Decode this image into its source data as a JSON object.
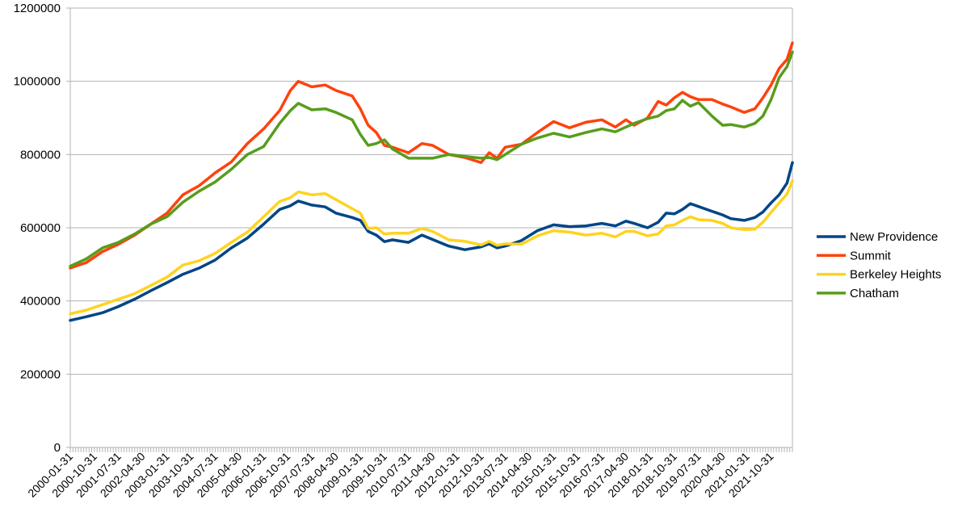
{
  "chart_data": {
    "type": "line",
    "title": "",
    "xlabel": "",
    "ylabel": "",
    "ylim": [
      0,
      1200000
    ],
    "yticks": [
      0,
      200000,
      400000,
      600000,
      800000,
      1000000,
      1200000
    ],
    "ytick_labels": [
      "0",
      "200000",
      "400000",
      "600000",
      "800000",
      "1000000",
      "1200000"
    ],
    "grid": "horizontal",
    "legend_position": "right",
    "x_start": "2000-01-31",
    "x_end": "2022-06-30",
    "xtick_labels": [
      "2000-01-31",
      "2000-10-31",
      "2001-07-31",
      "2002-04-30",
      "2003-01-31",
      "2003-10-31",
      "2004-07-31",
      "2005-04-30",
      "2006-01-31",
      "2006-10-31",
      "2007-07-31",
      "2008-04-30",
      "2009-01-31",
      "2009-10-31",
      "2010-07-31",
      "2011-04-30",
      "2012-01-31",
      "2012-10-31",
      "2013-07-31",
      "2014-04-30",
      "2015-01-31",
      "2015-10-31",
      "2016-07-31",
      "2017-04-30",
      "2018-01-31",
      "2018-10-31",
      "2019-07-31",
      "2020-04-30",
      "2021-01-31",
      "2021-10-31"
    ],
    "series": [
      {
        "name": "New Providence",
        "color": "#004586",
        "points": [
          [
            "2000-01-31",
            347000
          ],
          [
            "2000-07-31",
            357000
          ],
          [
            "2001-01-31",
            368000
          ],
          [
            "2001-07-31",
            385000
          ],
          [
            "2002-01-31",
            405000
          ],
          [
            "2002-07-31",
            428000
          ],
          [
            "2003-01-31",
            450000
          ],
          [
            "2003-07-31",
            473000
          ],
          [
            "2004-01-31",
            490000
          ],
          [
            "2004-07-31",
            512000
          ],
          [
            "2005-01-31",
            545000
          ],
          [
            "2005-07-31",
            572000
          ],
          [
            "2006-01-31",
            610000
          ],
          [
            "2006-07-31",
            650000
          ],
          [
            "2006-11-30",
            660000
          ],
          [
            "2007-02-28",
            673000
          ],
          [
            "2007-07-31",
            662000
          ],
          [
            "2007-12-31",
            657000
          ],
          [
            "2008-04-30",
            640000
          ],
          [
            "2008-10-31",
            628000
          ],
          [
            "2009-01-31",
            620000
          ],
          [
            "2009-04-30",
            590000
          ],
          [
            "2009-07-31",
            580000
          ],
          [
            "2009-10-31",
            562000
          ],
          [
            "2010-01-31",
            567000
          ],
          [
            "2010-07-31",
            560000
          ],
          [
            "2010-12-31",
            580000
          ],
          [
            "2011-04-30",
            568000
          ],
          [
            "2011-10-31",
            550000
          ],
          [
            "2012-04-30",
            540000
          ],
          [
            "2012-10-31",
            548000
          ],
          [
            "2013-01-31",
            556000
          ],
          [
            "2013-04-30",
            545000
          ],
          [
            "2013-07-31",
            550000
          ],
          [
            "2014-01-31",
            565000
          ],
          [
            "2014-07-31",
            592000
          ],
          [
            "2015-01-31",
            608000
          ],
          [
            "2015-07-31",
            603000
          ],
          [
            "2016-01-31",
            605000
          ],
          [
            "2016-07-31",
            612000
          ],
          [
            "2016-12-31",
            605000
          ],
          [
            "2017-04-30",
            618000
          ],
          [
            "2017-07-31",
            612000
          ],
          [
            "2017-12-31",
            600000
          ],
          [
            "2018-04-30",
            615000
          ],
          [
            "2018-07-31",
            640000
          ],
          [
            "2018-10-31",
            638000
          ],
          [
            "2019-01-31",
            650000
          ],
          [
            "2019-04-30",
            666000
          ],
          [
            "2019-07-31",
            658000
          ],
          [
            "2019-12-31",
            645000
          ],
          [
            "2020-04-30",
            635000
          ],
          [
            "2020-07-31",
            625000
          ],
          [
            "2020-12-31",
            620000
          ],
          [
            "2021-04-30",
            628000
          ],
          [
            "2021-07-31",
            643000
          ],
          [
            "2021-10-31",
            668000
          ],
          [
            "2022-01-31",
            690000
          ],
          [
            "2022-04-30",
            722000
          ],
          [
            "2022-06-30",
            778000
          ]
        ]
      },
      {
        "name": "Summit",
        "color": "#ff420e",
        "points": [
          [
            "2000-01-31",
            490000
          ],
          [
            "2000-07-31",
            505000
          ],
          [
            "2001-01-31",
            535000
          ],
          [
            "2001-07-31",
            555000
          ],
          [
            "2002-01-31",
            580000
          ],
          [
            "2002-07-31",
            610000
          ],
          [
            "2003-01-31",
            640000
          ],
          [
            "2003-07-31",
            690000
          ],
          [
            "2004-01-31",
            715000
          ],
          [
            "2004-07-31",
            750000
          ],
          [
            "2005-01-31",
            780000
          ],
          [
            "2005-07-31",
            830000
          ],
          [
            "2006-01-31",
            870000
          ],
          [
            "2006-07-31",
            920000
          ],
          [
            "2006-11-30",
            975000
          ],
          [
            "2007-02-28",
            1000000
          ],
          [
            "2007-07-31",
            985000
          ],
          [
            "2007-12-31",
            990000
          ],
          [
            "2008-04-30",
            975000
          ],
          [
            "2008-10-31",
            960000
          ],
          [
            "2009-01-31",
            925000
          ],
          [
            "2009-04-30",
            880000
          ],
          [
            "2009-07-31",
            860000
          ],
          [
            "2009-10-31",
            825000
          ],
          [
            "2010-01-31",
            820000
          ],
          [
            "2010-07-31",
            805000
          ],
          [
            "2010-12-31",
            830000
          ],
          [
            "2011-04-30",
            825000
          ],
          [
            "2011-10-31",
            800000
          ],
          [
            "2012-04-30",
            792000
          ],
          [
            "2012-10-31",
            778000
          ],
          [
            "2013-01-31",
            805000
          ],
          [
            "2013-04-30",
            790000
          ],
          [
            "2013-07-31",
            820000
          ],
          [
            "2014-01-31",
            828000
          ],
          [
            "2014-07-31",
            860000
          ],
          [
            "2015-01-31",
            890000
          ],
          [
            "2015-07-31",
            873000
          ],
          [
            "2016-01-31",
            888000
          ],
          [
            "2016-07-31",
            895000
          ],
          [
            "2016-12-31",
            875000
          ],
          [
            "2017-04-30",
            895000
          ],
          [
            "2017-07-31",
            880000
          ],
          [
            "2017-12-31",
            900000
          ],
          [
            "2018-04-30",
            945000
          ],
          [
            "2018-07-31",
            935000
          ],
          [
            "2018-10-31",
            955000
          ],
          [
            "2019-01-31",
            970000
          ],
          [
            "2019-04-30",
            958000
          ],
          [
            "2019-07-31",
            950000
          ],
          [
            "2019-12-31",
            950000
          ],
          [
            "2020-04-30",
            938000
          ],
          [
            "2020-07-31",
            930000
          ],
          [
            "2020-12-31",
            915000
          ],
          [
            "2021-04-30",
            925000
          ],
          [
            "2021-07-31",
            955000
          ],
          [
            "2021-10-31",
            990000
          ],
          [
            "2022-01-31",
            1035000
          ],
          [
            "2022-04-30",
            1060000
          ],
          [
            "2022-06-30",
            1105000
          ]
        ]
      },
      {
        "name": "Berkeley Heights",
        "color": "#ffd320",
        "points": [
          [
            "2000-01-31",
            365000
          ],
          [
            "2000-07-31",
            375000
          ],
          [
            "2001-01-31",
            390000
          ],
          [
            "2001-07-31",
            405000
          ],
          [
            "2002-01-31",
            420000
          ],
          [
            "2002-07-31",
            442000
          ],
          [
            "2003-01-31",
            465000
          ],
          [
            "2003-07-31",
            498000
          ],
          [
            "2004-01-31",
            510000
          ],
          [
            "2004-07-31",
            530000
          ],
          [
            "2005-01-31",
            560000
          ],
          [
            "2005-07-31",
            588000
          ],
          [
            "2006-01-31",
            630000
          ],
          [
            "2006-07-31",
            672000
          ],
          [
            "2006-11-30",
            682000
          ],
          [
            "2007-02-28",
            698000
          ],
          [
            "2007-07-31",
            690000
          ],
          [
            "2007-12-31",
            693000
          ],
          [
            "2008-04-30",
            677000
          ],
          [
            "2008-10-31",
            652000
          ],
          [
            "2009-01-31",
            640000
          ],
          [
            "2009-04-30",
            598000
          ],
          [
            "2009-07-31",
            600000
          ],
          [
            "2009-10-31",
            583000
          ],
          [
            "2010-01-31",
            585000
          ],
          [
            "2010-07-31",
            585000
          ],
          [
            "2010-12-31",
            598000
          ],
          [
            "2011-04-30",
            590000
          ],
          [
            "2011-10-31",
            567000
          ],
          [
            "2012-04-30",
            563000
          ],
          [
            "2012-10-31",
            553000
          ],
          [
            "2013-01-31",
            563000
          ],
          [
            "2013-04-30",
            552000
          ],
          [
            "2013-07-31",
            556000
          ],
          [
            "2014-01-31",
            555000
          ],
          [
            "2014-07-31",
            578000
          ],
          [
            "2015-01-31",
            592000
          ],
          [
            "2015-07-31",
            588000
          ],
          [
            "2016-01-31",
            580000
          ],
          [
            "2016-07-31",
            585000
          ],
          [
            "2016-12-31",
            575000
          ],
          [
            "2017-04-30",
            590000
          ],
          [
            "2017-07-31",
            590000
          ],
          [
            "2017-12-31",
            578000
          ],
          [
            "2018-04-30",
            583000
          ],
          [
            "2018-07-31",
            605000
          ],
          [
            "2018-10-31",
            608000
          ],
          [
            "2019-01-31",
            620000
          ],
          [
            "2019-04-30",
            630000
          ],
          [
            "2019-07-31",
            622000
          ],
          [
            "2019-12-31",
            620000
          ],
          [
            "2020-04-30",
            612000
          ],
          [
            "2020-07-31",
            600000
          ],
          [
            "2020-12-31",
            595000
          ],
          [
            "2021-04-30",
            596000
          ],
          [
            "2021-07-31",
            615000
          ],
          [
            "2021-10-31",
            642000
          ],
          [
            "2022-01-31",
            668000
          ],
          [
            "2022-04-30",
            692000
          ],
          [
            "2022-06-30",
            728000
          ]
        ]
      },
      {
        "name": "Chatham",
        "color": "#579d1c",
        "points": [
          [
            "2000-01-31",
            495000
          ],
          [
            "2000-07-31",
            515000
          ],
          [
            "2001-01-31",
            545000
          ],
          [
            "2001-07-31",
            560000
          ],
          [
            "2002-01-31",
            583000
          ],
          [
            "2002-07-31",
            610000
          ],
          [
            "2003-01-31",
            630000
          ],
          [
            "2003-07-31",
            670000
          ],
          [
            "2004-01-31",
            700000
          ],
          [
            "2004-07-31",
            725000
          ],
          [
            "2005-01-31",
            760000
          ],
          [
            "2005-07-31",
            800000
          ],
          [
            "2006-01-31",
            822000
          ],
          [
            "2006-07-31",
            885000
          ],
          [
            "2006-11-30",
            920000
          ],
          [
            "2007-02-28",
            940000
          ],
          [
            "2007-07-31",
            922000
          ],
          [
            "2007-12-31",
            925000
          ],
          [
            "2008-04-30",
            915000
          ],
          [
            "2008-10-31",
            895000
          ],
          [
            "2009-01-31",
            855000
          ],
          [
            "2009-04-30",
            825000
          ],
          [
            "2009-07-31",
            830000
          ],
          [
            "2009-10-31",
            840000
          ],
          [
            "2010-01-31",
            815000
          ],
          [
            "2010-07-31",
            790000
          ],
          [
            "2010-12-31",
            790000
          ],
          [
            "2011-04-30",
            790000
          ],
          [
            "2011-10-31",
            800000
          ],
          [
            "2012-04-30",
            795000
          ],
          [
            "2012-10-31",
            790000
          ],
          [
            "2013-01-31",
            792000
          ],
          [
            "2013-04-30",
            786000
          ],
          [
            "2013-07-31",
            800000
          ],
          [
            "2014-01-31",
            828000
          ],
          [
            "2014-07-31",
            845000
          ],
          [
            "2015-01-31",
            858000
          ],
          [
            "2015-07-31",
            848000
          ],
          [
            "2016-01-31",
            860000
          ],
          [
            "2016-07-31",
            870000
          ],
          [
            "2016-12-31",
            862000
          ],
          [
            "2017-04-30",
            875000
          ],
          [
            "2017-07-31",
            885000
          ],
          [
            "2017-12-31",
            898000
          ],
          [
            "2018-04-30",
            905000
          ],
          [
            "2018-07-31",
            920000
          ],
          [
            "2018-10-31",
            925000
          ],
          [
            "2019-01-31",
            948000
          ],
          [
            "2019-04-30",
            932000
          ],
          [
            "2019-07-31",
            942000
          ],
          [
            "2019-12-31",
            905000
          ],
          [
            "2020-04-30",
            880000
          ],
          [
            "2020-07-31",
            882000
          ],
          [
            "2020-12-31",
            875000
          ],
          [
            "2021-04-30",
            885000
          ],
          [
            "2021-07-31",
            905000
          ],
          [
            "2021-10-31",
            950000
          ],
          [
            "2022-01-31",
            1010000
          ],
          [
            "2022-04-30",
            1040000
          ],
          [
            "2022-06-30",
            1080000
          ]
        ]
      }
    ]
  }
}
